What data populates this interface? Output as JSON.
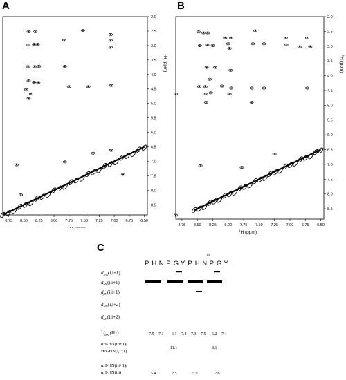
{
  "panels": {
    "a": {
      "letter": "A"
    },
    "b": {
      "letter": "B"
    },
    "c": {
      "letter": "C"
    }
  },
  "spectra": {
    "x_axis_label_sup": "1",
    "x_axis_label_rest": "H (ppm)",
    "y_axis_label_sup": "1",
    "y_axis_label_rest": "H (ppm)",
    "x_ticks": [
      "8.75",
      "8.50",
      "8.25",
      "8.00",
      "7.75",
      "7.50",
      "7.25",
      "7.00",
      "6.75",
      "6.50"
    ],
    "y_ticks": [
      "2.0",
      "2.5",
      "3.0",
      "3.5",
      "4.0",
      "4.5",
      "5.0",
      "5.5",
      "6.0",
      "6.5",
      "7.0",
      "7.5",
      "8.0",
      "8.5"
    ]
  },
  "chart_data": [
    {
      "type": "scatter",
      "panel": "A",
      "xlabel": "1H (ppm)",
      "ylabel": "1H (ppm)",
      "xlim": [
        8.85,
        6.45
      ],
      "ylim": [
        2.0,
        8.85
      ],
      "peaks": [
        {
          "x": 8.42,
          "y": 2.52
        },
        {
          "x": 8.31,
          "y": 2.52
        },
        {
          "x": 7.52,
          "y": 2.48
        },
        {
          "x": 7.06,
          "y": 2.62
        },
        {
          "x": 8.43,
          "y": 2.98
        },
        {
          "x": 8.33,
          "y": 2.96
        },
        {
          "x": 8.27,
          "y": 2.96
        },
        {
          "x": 7.83,
          "y": 2.82
        },
        {
          "x": 7.06,
          "y": 2.82
        },
        {
          "x": 7.06,
          "y": 3.06
        },
        {
          "x": 8.43,
          "y": 3.73
        },
        {
          "x": 8.32,
          "y": 3.73
        },
        {
          "x": 8.25,
          "y": 3.72
        },
        {
          "x": 7.82,
          "y": 3.72
        },
        {
          "x": 8.42,
          "y": 4.22
        },
        {
          "x": 8.33,
          "y": 4.27
        },
        {
          "x": 8.26,
          "y": 4.28
        },
        {
          "x": 7.75,
          "y": 4.42
        },
        {
          "x": 7.43,
          "y": 4.42
        },
        {
          "x": 7.05,
          "y": 4.38
        },
        {
          "x": 8.46,
          "y": 4.52
        },
        {
          "x": 8.38,
          "y": 4.67
        },
        {
          "x": 8.42,
          "y": 4.83
        },
        {
          "x": 7.35,
          "y": 6.72
        },
        {
          "x": 7.05,
          "y": 6.62
        },
        {
          "x": 8.62,
          "y": 7.12
        },
        {
          "x": 7.82,
          "y": 7.02
        },
        {
          "x": 6.85,
          "y": 7.45
        },
        {
          "x": 8.55,
          "y": 8.16
        }
      ],
      "diagonal": {
        "from": 8.85,
        "to": 6.5
      }
    },
    {
      "type": "scatter",
      "panel": "B",
      "xlabel": "1H (ppm)",
      "ylabel": "1H (ppm)",
      "xlim": [
        8.85,
        6.45
      ],
      "ylim": [
        2.0,
        8.85
      ],
      "peaks": [
        {
          "x": 8.48,
          "y": 2.52
        },
        {
          "x": 8.4,
          "y": 2.55
        },
        {
          "x": 8.33,
          "y": 2.55
        },
        {
          "x": 8.05,
          "y": 2.72
        },
        {
          "x": 7.95,
          "y": 2.72
        },
        {
          "x": 7.56,
          "y": 2.48
        },
        {
          "x": 7.07,
          "y": 2.72
        },
        {
          "x": 6.72,
          "y": 2.72
        },
        {
          "x": 8.46,
          "y": 2.98
        },
        {
          "x": 8.34,
          "y": 2.96
        },
        {
          "x": 8.25,
          "y": 2.98
        },
        {
          "x": 8.0,
          "y": 2.92
        },
        {
          "x": 7.98,
          "y": 3.08
        },
        {
          "x": 7.6,
          "y": 2.92
        },
        {
          "x": 7.42,
          "y": 2.92
        },
        {
          "x": 7.06,
          "y": 2.96
        },
        {
          "x": 6.84,
          "y": 3.02
        },
        {
          "x": 6.67,
          "y": 3.02
        },
        {
          "x": 8.21,
          "y": 3.72
        },
        {
          "x": 8.35,
          "y": 3.72
        },
        {
          "x": 7.96,
          "y": 3.82
        },
        {
          "x": 8.3,
          "y": 4.12
        },
        {
          "x": 8.47,
          "y": 4.37
        },
        {
          "x": 8.37,
          "y": 4.37
        },
        {
          "x": 8.1,
          "y": 4.35
        },
        {
          "x": 7.95,
          "y": 4.42
        },
        {
          "x": 7.62,
          "y": 4.42
        },
        {
          "x": 7.42,
          "y": 4.42
        },
        {
          "x": 6.72,
          "y": 4.42
        },
        {
          "x": 8.85,
          "y": 4.62
        },
        {
          "x": 8.36,
          "y": 4.62
        },
        {
          "x": 8.28,
          "y": 4.58
        },
        {
          "x": 7.98,
          "y": 4.62
        },
        {
          "x": 8.36,
          "y": 4.9
        },
        {
          "x": 7.62,
          "y": 4.9
        },
        {
          "x": 7.25,
          "y": 6.65
        },
        {
          "x": 6.55,
          "y": 6.55
        },
        {
          "x": 8.45,
          "y": 7.05
        },
        {
          "x": 7.78,
          "y": 7.1
        },
        {
          "x": 8.85,
          "y": 8.72
        }
      ],
      "diagonal": {
        "from": 8.55,
        "to": 6.5
      }
    },
    {
      "type": "table",
      "panel": "C"
    }
  ],
  "table_c": {
    "number_label": "10",
    "sequence": "PHNPGYPHNPGY",
    "rows": [
      {
        "sym": "d",
        "sub": "NN",
        "arg": "(i,i+1)"
      },
      {
        "sym": "d",
        "sub": "αN",
        "arg": "(i,i+1)"
      },
      {
        "sym": "d",
        "sub": "βN",
        "arg": "(i,i+1)"
      },
      {
        "sym": "d",
        "sub": "NN",
        "arg": "(i,i+2)"
      },
      {
        "sym": "d",
        "sub": "αN",
        "arg": "(i,i+2)"
      }
    ],
    "coupling_label_sup": "3",
    "coupling_label_rest": "J",
    "coupling_label_sub": "αN",
    "coupling_label_tail": " (Hz)",
    "coupling_values": [
      "7.5",
      "7.1",
      "6.1",
      "7.4",
      "7.3",
      "7.5",
      "6.2",
      "7.4"
    ],
    "ratio1_line1": "αH-HN(i,i+1)/",
    "ratio1_line2": "HN-HN(i,i+1)",
    "ratio1_values": [
      "11.1",
      "8.1"
    ],
    "ratio2_line1": "αH-HN(i,i+1)/",
    "ratio2_line2": "αH-HN(i,i)",
    "ratio2_values": [
      "5.4",
      "2.5",
      "5.9",
      "2.6"
    ]
  }
}
